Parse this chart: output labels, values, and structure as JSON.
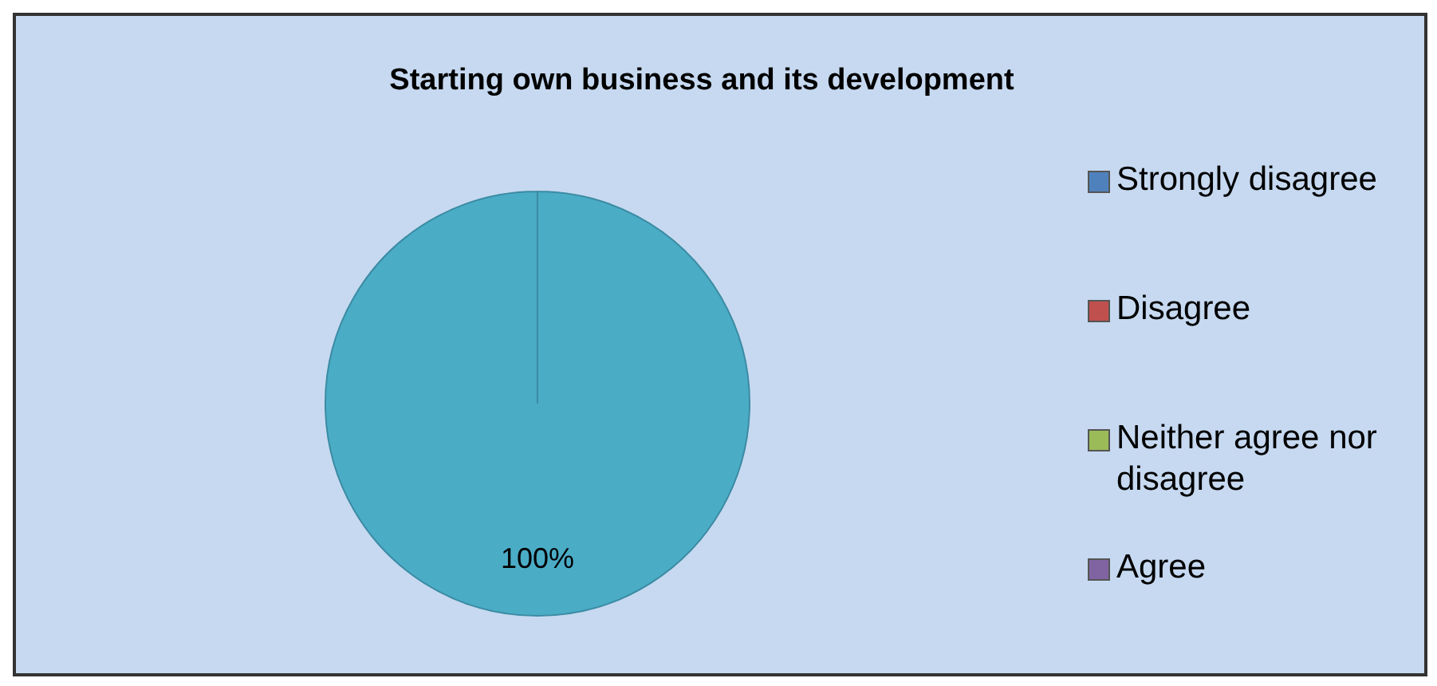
{
  "chart_data": {
    "type": "pie",
    "title": "Starting own business and its development",
    "categories": [
      "Strongly disagree",
      "Disagree",
      "Neither agree nor disagree",
      "Agree",
      null
    ],
    "values": [
      0,
      0,
      0,
      0,
      100
    ],
    "colors": [
      "#4f81bd",
      "#c0504d",
      "#9bbb59",
      "#8064a2",
      "#4bacc6"
    ],
    "value_labels": [
      null,
      null,
      null,
      null,
      "100%"
    ],
    "legend": "right"
  }
}
